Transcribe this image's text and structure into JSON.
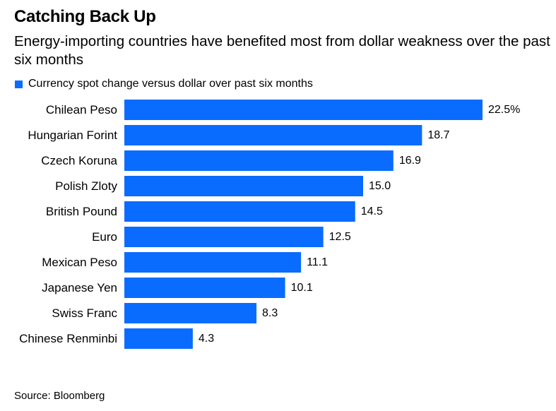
{
  "title": "Catching Back Up",
  "subtitle": "Energy-importing countries have benefited most from dollar weakness over the past six months",
  "source": "Source: Bloomberg",
  "colors": {
    "bar": "#0a6cff",
    "text": "#000000"
  },
  "chart_data": {
    "type": "bar",
    "orientation": "horizontal",
    "legend": "Currency spot change versus dollar over past six months",
    "legend_position": "top-left",
    "grid": false,
    "categories": [
      "Chilean Peso",
      "Hungarian Forint",
      "Czech Koruna",
      "Polish Zloty",
      "British Pound",
      "Euro",
      "Mexican Peso",
      "Japanese Yen",
      "Swiss Franc",
      "Chinese Renminbi"
    ],
    "values": [
      22.5,
      18.7,
      16.9,
      15.0,
      14.5,
      12.5,
      11.1,
      10.1,
      8.3,
      4.3
    ],
    "value_labels": [
      "22.5%",
      "18.7",
      "16.9",
      "15.0",
      "14.5",
      "12.5",
      "11.1",
      "10.1",
      "8.3",
      "4.3"
    ],
    "xlim": [
      0,
      22.5
    ]
  }
}
